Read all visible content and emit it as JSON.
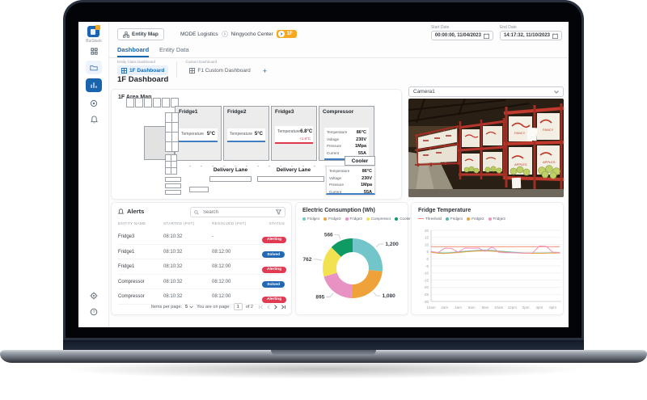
{
  "app": {
    "logo_text": "BizStack"
  },
  "colors": {
    "primary_blue": "#1569b3",
    "accent_orange": "#f6a821",
    "alert_red": "#e03b52",
    "solved_blue": "#2268b2"
  },
  "header": {
    "entity_map_label": "Entity Map",
    "breadcrumb": [
      "MODE Logistics",
      "Ningyocho Center"
    ],
    "location_badge": "1F",
    "start_date": {
      "label": "Start Date",
      "value": "00:00:00, 11/04/2023"
    },
    "end_date": {
      "label": "End Date",
      "value": "14:17:32, 11/10/2023"
    }
  },
  "tabs": {
    "dashboard": "Dashboard",
    "entity_data": "Entity Data"
  },
  "dashboard_switcher": {
    "entity_class_label": "Entity Class Dashboard",
    "custom_label": "Custom Dashboard",
    "entity_class_tab": "1F Dashboard",
    "custom_tab": "F1 Custom Dashboard",
    "add_button": "+"
  },
  "page_title": "1F Dashboard",
  "area_map": {
    "title": "1F Area Map",
    "delivery_lane_label": "Delivery Lane",
    "rooms": [
      {
        "name": "Fridge1",
        "status": "normal",
        "readings": [
          {
            "label": "Temperature",
            "value": "5°C"
          }
        ]
      },
      {
        "name": "Fridge2",
        "status": "normal",
        "readings": [
          {
            "label": "Temperature",
            "value": "5°C"
          }
        ]
      },
      {
        "name": "Fridge3",
        "status": "alert",
        "readings": [
          {
            "label": "Temperature",
            "value": "6.8°C",
            "delta": "+1.8°C"
          }
        ]
      },
      {
        "name": "Compressor",
        "status": "normal",
        "readings": [
          {
            "label": "Temperature",
            "value": "86°C"
          },
          {
            "label": "Voltage",
            "value": "230V"
          },
          {
            "label": "Pressure",
            "value": "1Mpa"
          },
          {
            "label": "Current",
            "value": "55A"
          }
        ]
      },
      {
        "name": "Cooler",
        "status": "normal",
        "readings": [
          {
            "label": "Temperature",
            "value": "86°C"
          },
          {
            "label": "Voltage",
            "value": "230V"
          },
          {
            "label": "Pressure",
            "value": "1Mpa"
          },
          {
            "label": "Current",
            "value": "55A"
          }
        ]
      }
    ]
  },
  "camera": {
    "selected": "Camera1"
  },
  "alerts": {
    "title": "Alerts",
    "search_placeholder": "Search",
    "columns": [
      "ENTITY NAME",
      "STARTED (PST)",
      "RESOLVED (PST)",
      "STATUS"
    ],
    "rows": [
      {
        "entity": "Fridge3",
        "started": "08:10:32",
        "resolved": "-",
        "status": "Alerting"
      },
      {
        "entity": "Fridge1",
        "started": "08:10:32",
        "resolved": "08:12:00",
        "status": "Solved"
      },
      {
        "entity": "Fridge1",
        "started": "08:10:32",
        "resolved": "08:12:00",
        "status": "Alerting"
      },
      {
        "entity": "Compressor",
        "started": "08:10:32",
        "resolved": "08:12:00",
        "status": "Solved"
      },
      {
        "entity": "Compressor",
        "started": "08:10:32",
        "resolved": "08:12:00",
        "status": "Alerting"
      }
    ],
    "pagination": {
      "items_per_page_label": "Items per page:",
      "items_per_page": "5",
      "page_label": "You are on page:",
      "page": "1",
      "of_label": "of 2"
    }
  },
  "chart_data": [
    {
      "type": "pie",
      "donut": true,
      "title": "Electric Consumption (Wh)",
      "categories": [
        "Fridge1",
        "Fridge2",
        "Fridge3",
        "Compressor",
        "Cooler"
      ],
      "values": [
        1200,
        1080,
        895,
        762,
        566
      ],
      "value_labels": [
        "1,200",
        "1,080",
        "895",
        "762",
        "566"
      ],
      "colors": [
        "#72c5c8",
        "#f0a23a",
        "#e892c3",
        "#f2e251",
        "#109a63"
      ],
      "legend_position": "top"
    },
    {
      "type": "line",
      "title": "Fridge Temperature",
      "x_labels": [
        "12am",
        "2am",
        "4am",
        "6am",
        "8am",
        "10am",
        "12pm",
        "2pm",
        "4pm",
        "6pm"
      ],
      "ylim": [
        -30,
        20
      ],
      "ytick_step": 5,
      "grid": true,
      "legend_position": "top",
      "series": [
        {
          "name": "Threshold",
          "color": "#f28b6f",
          "style": "threshold",
          "value": 8.5
        },
        {
          "name": "Fridge1",
          "color": "#55b7b4",
          "values": [
            5,
            4.2,
            4,
            4.3,
            4.8,
            5.2,
            5.6,
            5.9,
            6,
            5.8,
            5.4,
            5,
            4.6,
            4.3,
            4.1,
            4,
            4,
            4.1,
            4.2,
            4.2
          ]
        },
        {
          "name": "Fridge2",
          "color": "#f0a23a",
          "values": [
            4.6,
            3.9,
            3.7,
            4,
            4.4,
            4.8,
            5.2,
            5.5,
            5.6,
            5.4,
            5,
            4.6,
            4.2,
            4,
            3.8,
            3.8,
            3.8,
            3.9,
            4,
            4
          ]
        },
        {
          "name": "Fridge3",
          "color": "#ef92c0",
          "values": [
            5.2,
            4.2,
            7.4,
            7.3,
            4.6,
            7.5,
            7.4,
            7.5,
            5.2,
            8.4,
            4.6,
            4.2,
            4.3,
            4.1,
            4,
            4.1,
            9,
            8.8,
            4.6,
            4.3
          ]
        }
      ]
    }
  ]
}
